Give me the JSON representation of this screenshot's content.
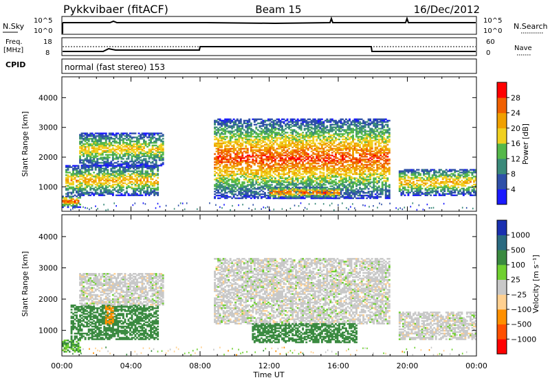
{
  "header": {
    "station": "Pykkvibaer (fitACF)",
    "beam": "Beam 15",
    "date": "16/Dec/2012"
  },
  "noise_panel": {
    "left_label": "N.Sky",
    "right_label": "N.Search",
    "left_ticks": [
      "10^5",
      "10^0"
    ],
    "right_ticks": [
      "10^5",
      "10^0"
    ]
  },
  "freq_panel": {
    "left_label_1": "Freq.",
    "left_label_2": "[MHz]",
    "right_label": "Nave",
    "left_ticks": [
      "18",
      "8"
    ],
    "right_ticks": [
      "60",
      "0"
    ]
  },
  "cpid": {
    "label": "CPID",
    "mode": "normal (fast stereo) 153"
  },
  "colors": {
    "power_scale": [
      "#1a1aff",
      "#2e50a8",
      "#3a8a7a",
      "#55b84a",
      "#f0d020",
      "#f0a000",
      "#f06000",
      "#ff0000"
    ],
    "velocity_scale": [
      "#ff0000",
      "#ff5000",
      "#ff9000",
      "#ffd090",
      "#c8c8c8",
      "#70d030",
      "#3a8a40",
      "#2a6a80",
      "#1a30b0"
    ],
    "velocity_zero": "#c8c8c8"
  },
  "chart_data": [
    {
      "type": "heatmap",
      "title": "",
      "xlabel": "",
      "ylabel": "Slant Range [km]",
      "xlim": [
        0,
        24
      ],
      "ylim": [
        180,
        4700
      ],
      "x_ticks": [
        "00:00",
        "04:00",
        "08:00",
        "12:00",
        "16:00",
        "20:00",
        "00:00"
      ],
      "y_ticks": [
        1000,
        2000,
        3000,
        4000
      ],
      "colorbar": {
        "label": "Power [dB]",
        "ticks": [
          "4",
          "8",
          "12",
          "16",
          "20",
          "24",
          "28"
        ]
      },
      "echo_regions": [
        {
          "t": [
            0.0,
            1.0
          ],
          "r": [
            300,
            700
          ],
          "peak": 28
        },
        {
          "t": [
            0.2,
            5.5
          ],
          "r": [
            700,
            1700
          ],
          "peak": 22
        },
        {
          "t": [
            1.0,
            5.8
          ],
          "r": [
            1700,
            2800
          ],
          "peak": 20
        },
        {
          "t": [
            8.8,
            19.0
          ],
          "r": [
            600,
            3300
          ],
          "peak": 28
        },
        {
          "t": [
            12.0,
            16.0
          ],
          "r": [
            600,
            1000
          ],
          "peak": 28
        },
        {
          "t": [
            19.5,
            24.0
          ],
          "r": [
            700,
            1600
          ],
          "peak": 22
        }
      ]
    },
    {
      "type": "heatmap",
      "title": "",
      "xlabel": "Time UT",
      "ylabel": "Slant Range [km]",
      "xlim": [
        0,
        24
      ],
      "ylim": [
        180,
        4700
      ],
      "x_ticks": [
        "00:00",
        "04:00",
        "08:00",
        "12:00",
        "16:00",
        "20:00",
        "00:00"
      ],
      "y_ticks": [
        1000,
        2000,
        3000,
        4000
      ],
      "colorbar": {
        "label": "Velocity [m s⁻¹]",
        "ticks": [
          "1000",
          "500",
          "100",
          "25",
          "−25",
          "−100",
          "−500",
          "−1000"
        ]
      },
      "echo_regions": [
        {
          "t": [
            0.0,
            1.0
          ],
          "r": [
            300,
            700
          ],
          "velocity": 100
        },
        {
          "t": [
            0.5,
            5.5
          ],
          "r": [
            700,
            1800
          ],
          "velocity": 150
        },
        {
          "t": [
            2.5,
            3.0
          ],
          "r": [
            1200,
            1800
          ],
          "velocity": -300
        },
        {
          "t": [
            1.0,
            5.8
          ],
          "r": [
            1800,
            2800
          ],
          "velocity": 0
        },
        {
          "t": [
            8.8,
            19.0
          ],
          "r": [
            1200,
            3300
          ],
          "velocity": 0
        },
        {
          "t": [
            11.0,
            17.0
          ],
          "r": [
            600,
            1200
          ],
          "velocity": 200
        },
        {
          "t": [
            19.5,
            24.0
          ],
          "r": [
            700,
            1600
          ],
          "velocity": 0
        }
      ]
    }
  ]
}
